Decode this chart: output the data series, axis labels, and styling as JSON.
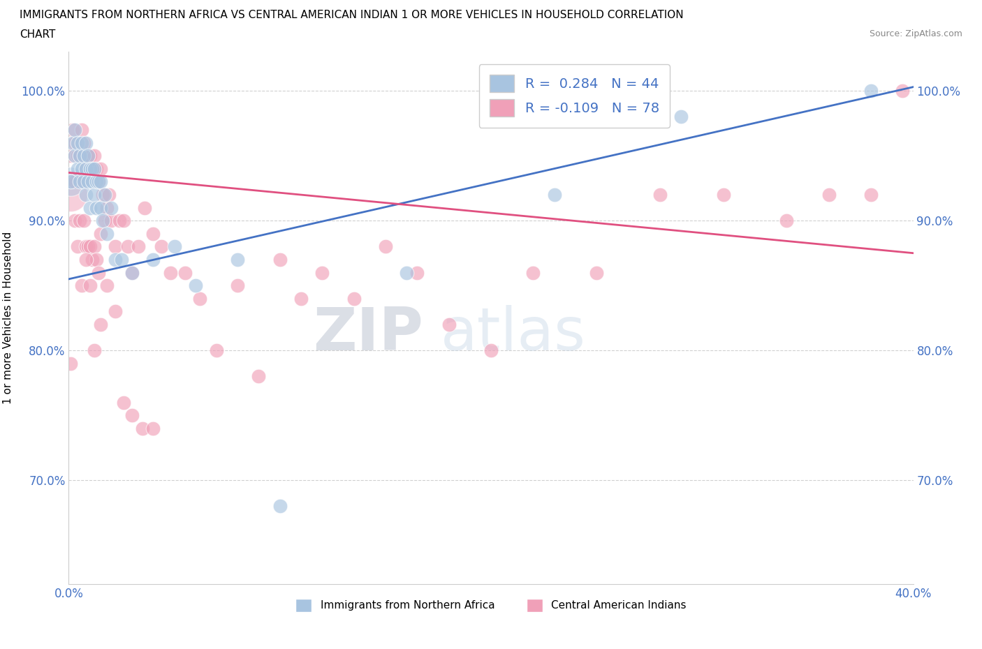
{
  "title_line1": "IMMIGRANTS FROM NORTHERN AFRICA VS CENTRAL AMERICAN INDIAN 1 OR MORE VEHICLES IN HOUSEHOLD CORRELATION",
  "title_line2": "CHART",
  "source_text": "Source: ZipAtlas.com",
  "ylabel": "1 or more Vehicles in Household",
  "xlim": [
    0.0,
    0.4
  ],
  "ylim": [
    0.62,
    1.03
  ],
  "ytick_labels": [
    "100.0%",
    "90.0%",
    "80.0%",
    "70.0%"
  ],
  "ytick_values": [
    1.0,
    0.9,
    0.8,
    0.7
  ],
  "xtick_labels": [
    "0.0%",
    "40.0%"
  ],
  "xtick_values": [
    0.0,
    0.4
  ],
  "blue_R": 0.284,
  "blue_N": 44,
  "pink_R": -0.109,
  "pink_N": 78,
  "blue_color": "#a8c4e0",
  "pink_color": "#f0a0b8",
  "blue_line_color": "#4472c4",
  "pink_line_color": "#e05080",
  "watermark_zip": "ZIP",
  "watermark_atlas": "atlas",
  "legend_label_blue": "Immigrants from Northern Africa",
  "legend_label_pink": "Central American Indians",
  "blue_scatter_x": [
    0.001,
    0.002,
    0.003,
    0.003,
    0.004,
    0.004,
    0.005,
    0.005,
    0.006,
    0.006,
    0.007,
    0.007,
    0.008,
    0.008,
    0.008,
    0.009,
    0.009,
    0.01,
    0.01,
    0.011,
    0.011,
    0.012,
    0.012,
    0.013,
    0.013,
    0.014,
    0.015,
    0.015,
    0.016,
    0.017,
    0.018,
    0.02,
    0.022,
    0.025,
    0.03,
    0.04,
    0.05,
    0.06,
    0.08,
    0.1,
    0.16,
    0.23,
    0.29,
    0.38
  ],
  "blue_scatter_y": [
    0.93,
    0.96,
    0.95,
    0.97,
    0.94,
    0.96,
    0.95,
    0.93,
    0.94,
    0.96,
    0.95,
    0.93,
    0.94,
    0.92,
    0.96,
    0.93,
    0.95,
    0.94,
    0.91,
    0.93,
    0.94,
    0.92,
    0.94,
    0.91,
    0.93,
    0.93,
    0.91,
    0.93,
    0.9,
    0.92,
    0.89,
    0.91,
    0.87,
    0.87,
    0.86,
    0.87,
    0.88,
    0.85,
    0.87,
    0.68,
    0.86,
    0.92,
    0.98,
    1.0
  ],
  "pink_scatter_x": [
    0.001,
    0.001,
    0.002,
    0.002,
    0.003,
    0.003,
    0.003,
    0.004,
    0.004,
    0.005,
    0.005,
    0.006,
    0.006,
    0.007,
    0.007,
    0.008,
    0.008,
    0.009,
    0.009,
    0.01,
    0.01,
    0.011,
    0.011,
    0.012,
    0.012,
    0.013,
    0.013,
    0.014,
    0.014,
    0.015,
    0.015,
    0.016,
    0.017,
    0.018,
    0.019,
    0.02,
    0.022,
    0.024,
    0.026,
    0.028,
    0.03,
    0.033,
    0.036,
    0.04,
    0.044,
    0.048,
    0.055,
    0.062,
    0.07,
    0.08,
    0.09,
    0.1,
    0.11,
    0.12,
    0.135,
    0.15,
    0.165,
    0.18,
    0.2,
    0.22,
    0.25,
    0.28,
    0.31,
    0.34,
    0.36,
    0.38,
    0.395,
    0.006,
    0.008,
    0.01,
    0.012,
    0.015,
    0.018,
    0.022,
    0.026,
    0.03,
    0.035,
    0.04
  ],
  "pink_scatter_y": [
    0.95,
    0.79,
    0.97,
    0.93,
    0.96,
    0.93,
    0.9,
    0.95,
    0.88,
    0.95,
    0.9,
    0.97,
    0.93,
    0.96,
    0.9,
    0.94,
    0.88,
    0.95,
    0.88,
    0.95,
    0.88,
    0.94,
    0.87,
    0.95,
    0.88,
    0.94,
    0.87,
    0.93,
    0.86,
    0.94,
    0.89,
    0.92,
    0.9,
    0.91,
    0.92,
    0.9,
    0.88,
    0.9,
    0.9,
    0.88,
    0.86,
    0.88,
    0.91,
    0.89,
    0.88,
    0.86,
    0.86,
    0.84,
    0.8,
    0.85,
    0.78,
    0.87,
    0.84,
    0.86,
    0.84,
    0.88,
    0.86,
    0.82,
    0.8,
    0.86,
    0.86,
    0.92,
    0.92,
    0.9,
    0.92,
    0.92,
    1.0,
    0.85,
    0.87,
    0.85,
    0.8,
    0.82,
    0.85,
    0.83,
    0.76,
    0.75,
    0.74,
    0.74
  ],
  "blue_trend_x": [
    0.0,
    0.4
  ],
  "blue_trend_y": [
    0.855,
    1.003
  ],
  "pink_trend_x": [
    0.0,
    0.4
  ],
  "pink_trend_y": [
    0.937,
    0.875
  ],
  "grid_color": "#d0d0d0",
  "background_color": "#ffffff"
}
